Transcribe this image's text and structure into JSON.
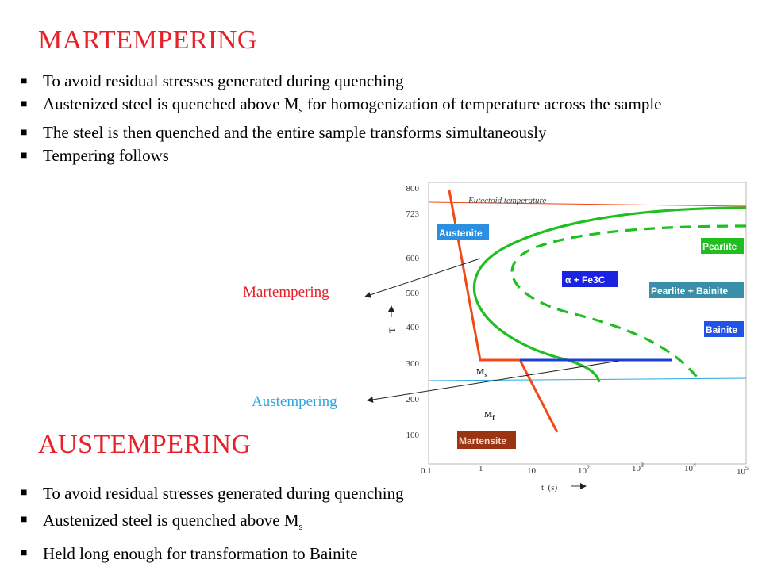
{
  "colors": {
    "title": "#e8202a",
    "martempering_label": "#e8202a",
    "austempering_label": "#29a8e0",
    "curve_green": "#1fbf1f",
    "quench_red": "#f04a18",
    "hold_blue": "#1a3fd0",
    "austenite_box": "#2a8fe0",
    "alpha_box": "#1b22e0",
    "pearlite_bainite_box": "#3a8fa8",
    "bainite_box": "#2252e6",
    "martensite_box": "#9a3412"
  },
  "martempering": {
    "title": "MARTEMPERING",
    "bullets": [
      {
        "text": "To avoid residual stresses generated during quenching"
      },
      {
        "text": "Austenized steel is quenched above M",
        "sub": "s",
        "tail": " for homogenization of temperature across the sample"
      },
      {
        "text": "The steel is then quenched and the entire sample transforms simultaneously"
      },
      {
        "text": "Tempering follows"
      }
    ]
  },
  "austempering": {
    "title": "AUSTEMPERING",
    "bullets": [
      {
        "text": "To avoid residual stresses generated during quenching"
      },
      {
        "text": "Austenized steel is quenched above M",
        "sub": "s"
      },
      {
        "text": "Held long enough for transformation to Bainite"
      }
    ]
  },
  "side_labels": {
    "martempering": "Martempering",
    "austempering": "Austempering"
  },
  "diagram": {
    "y_ticks": [
      "800",
      "723",
      "600",
      "500",
      "400",
      "300",
      "200",
      "100"
    ],
    "x_ticks": [
      {
        "base": "0.1",
        "exp": ""
      },
      {
        "base": "1",
        "exp": ""
      },
      {
        "base": "10",
        "exp": ""
      },
      {
        "base": "10",
        "exp": "2"
      },
      {
        "base": "10",
        "exp": "3"
      },
      {
        "base": "10",
        "exp": "4"
      },
      {
        "base": "10",
        "exp": "5"
      }
    ],
    "y_axis_label": "T",
    "x_axis_label": "t  (s)",
    "eutectoid_label": "Eutectoid temperature",
    "ms_label": {
      "base": "M",
      "sub": "s"
    },
    "mf_label": {
      "base": "M",
      "sub": "f"
    },
    "regions": {
      "austenite": "Austenite",
      "alpha_fe3c": "α + Fe3C",
      "pearlite": "Pearlite",
      "pearlite_bainite": "Pearlite + Bainite",
      "bainite": "Bainite",
      "martensite": "Martensite"
    }
  }
}
